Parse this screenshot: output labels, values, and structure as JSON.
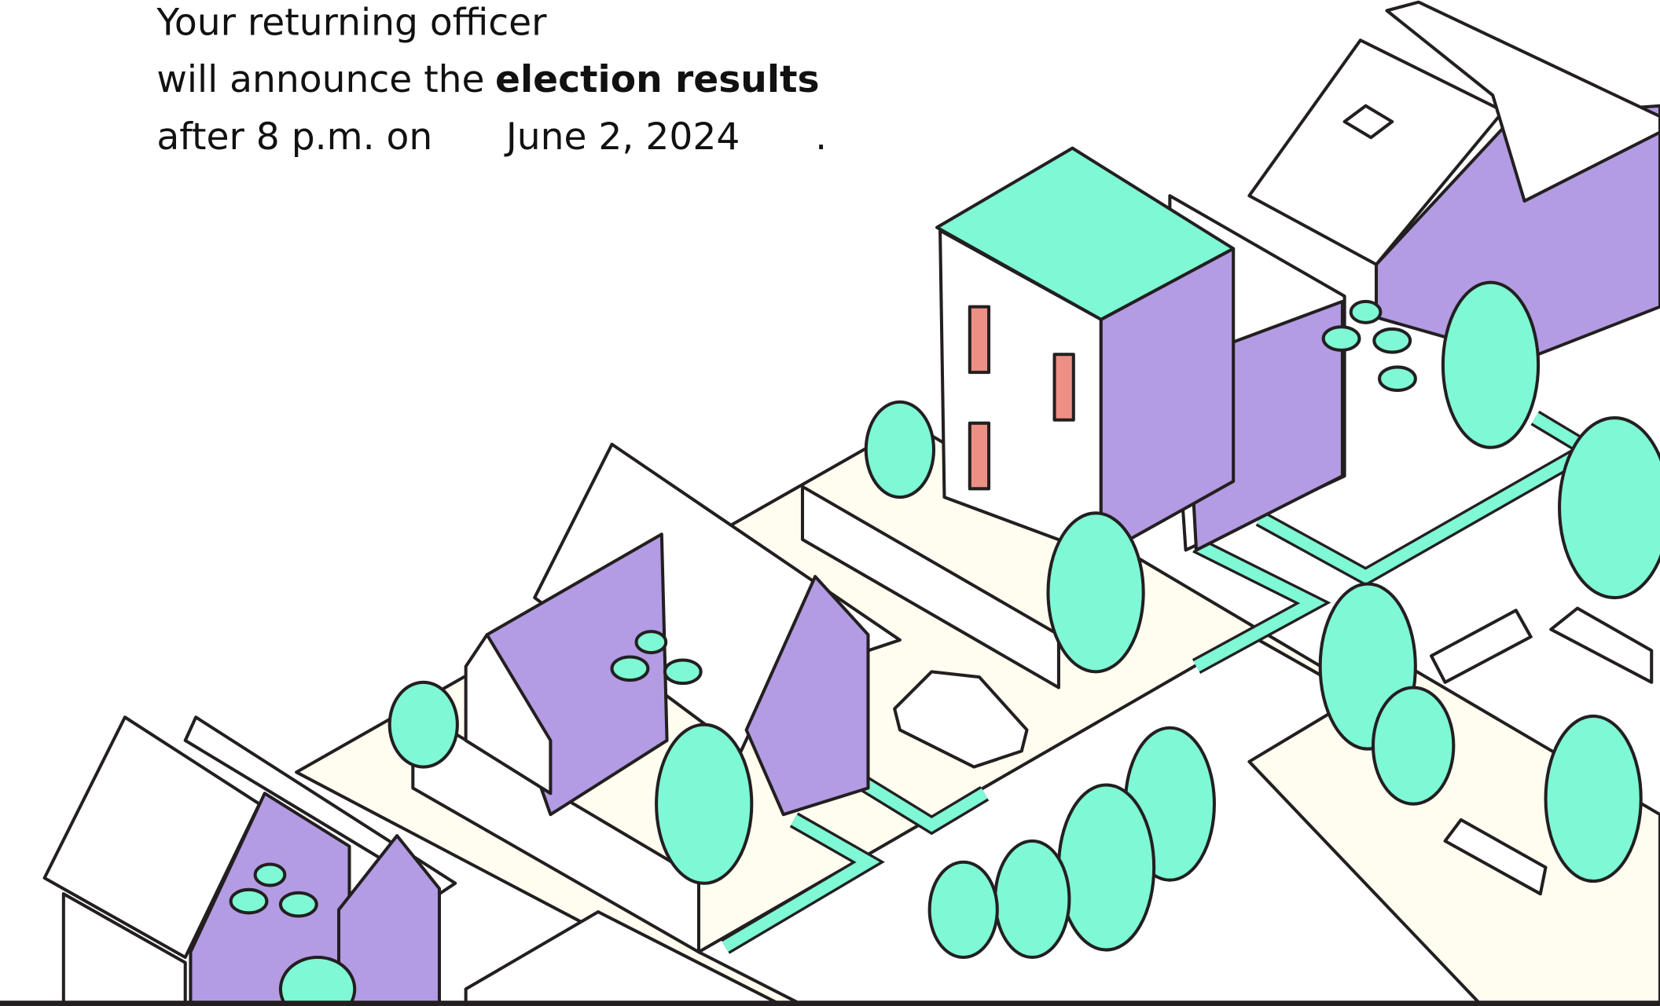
{
  "message": {
    "line1": "Your returning officer",
    "line2_prefix": "will announce the",
    "line2_bold": "election results",
    "line3_prefix": "after 8 p.m. on",
    "date": "June 2, 2024",
    "line3_suffix": "."
  }
}
